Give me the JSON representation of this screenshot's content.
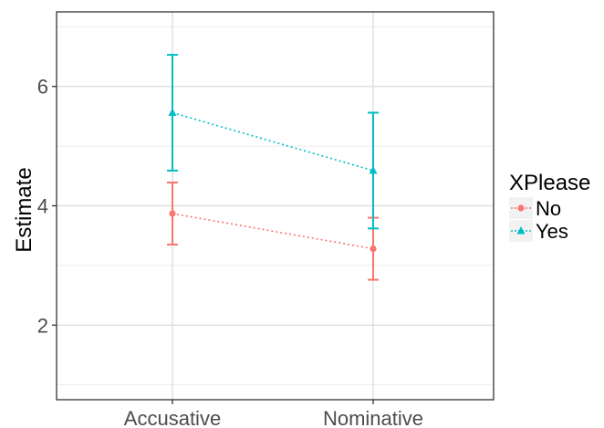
{
  "chart_data": {
    "type": "scatter",
    "xlabel": "",
    "ylabel": "Estimate",
    "categories": [
      "Accusative",
      "Nominative"
    ],
    "ylim": [
      0.75,
      7.25
    ],
    "yticks": [
      2,
      4,
      6
    ],
    "grid": true,
    "legend": {
      "title": "XPlease",
      "placement": "right",
      "entries": [
        "No",
        "Yes"
      ]
    },
    "series": [
      {
        "name": "No",
        "color": "#F8766D",
        "marker": "circle",
        "values": [
          3.87,
          3.28
        ],
        "lower": [
          3.35,
          2.76
        ],
        "upper": [
          4.39,
          3.8
        ]
      },
      {
        "name": "Yes",
        "color": "#00BFC4",
        "marker": "triangle",
        "values": [
          5.56,
          4.59
        ],
        "lower": [
          4.59,
          3.62
        ],
        "upper": [
          6.53,
          5.56
        ]
      }
    ]
  }
}
